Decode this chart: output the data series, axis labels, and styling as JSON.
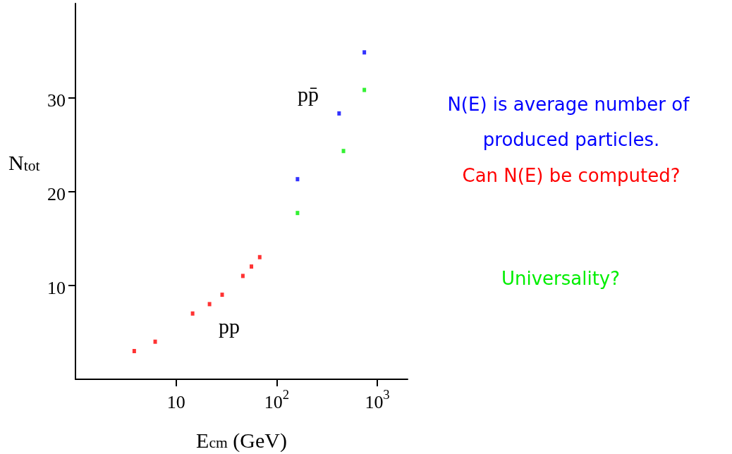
{
  "chart_data": {
    "type": "scatter",
    "xlabel": "E$_{cm}$ (GeV)",
    "ylabel": "N$_{tot}$",
    "log": "x",
    "xlim": [
      1,
      2000
    ],
    "ylim": [
      0,
      40
    ],
    "xticks": [
      10,
      {
        "value": 100,
        "label": "10$^{2}$"
      },
      {
        "value": 1000,
        "label": "10$^{3}$"
      }
    ],
    "yticks": [
      10,
      20,
      30
    ],
    "grid": false,
    "marker": "square",
    "series": [
      {
        "color": "#ff0000",
        "x": [
          3.84,
          6.2,
          14.6,
          21.5,
          28.7,
          46.1,
          56.1,
          67.8
        ],
        "values": [
          3,
          4,
          7,
          8,
          9,
          11,
          12,
          13
        ]
      },
      {
        "color": "#0000ff",
        "x": [
          161,
          417,
          743
        ],
        "values": [
          21.3,
          28.3,
          34.8
        ]
      },
      {
        "color": "#00ee00",
        "x": [
          161,
          461,
          743
        ],
        "values": [
          17.7,
          24.3,
          30.8
        ]
      }
    ],
    "annotations": [
      "pp",
      "pp̄",
      "N(E) is average number of produced particles.",
      "Can N(E) be computed?",
      "Universality?"
    ]
  }
}
